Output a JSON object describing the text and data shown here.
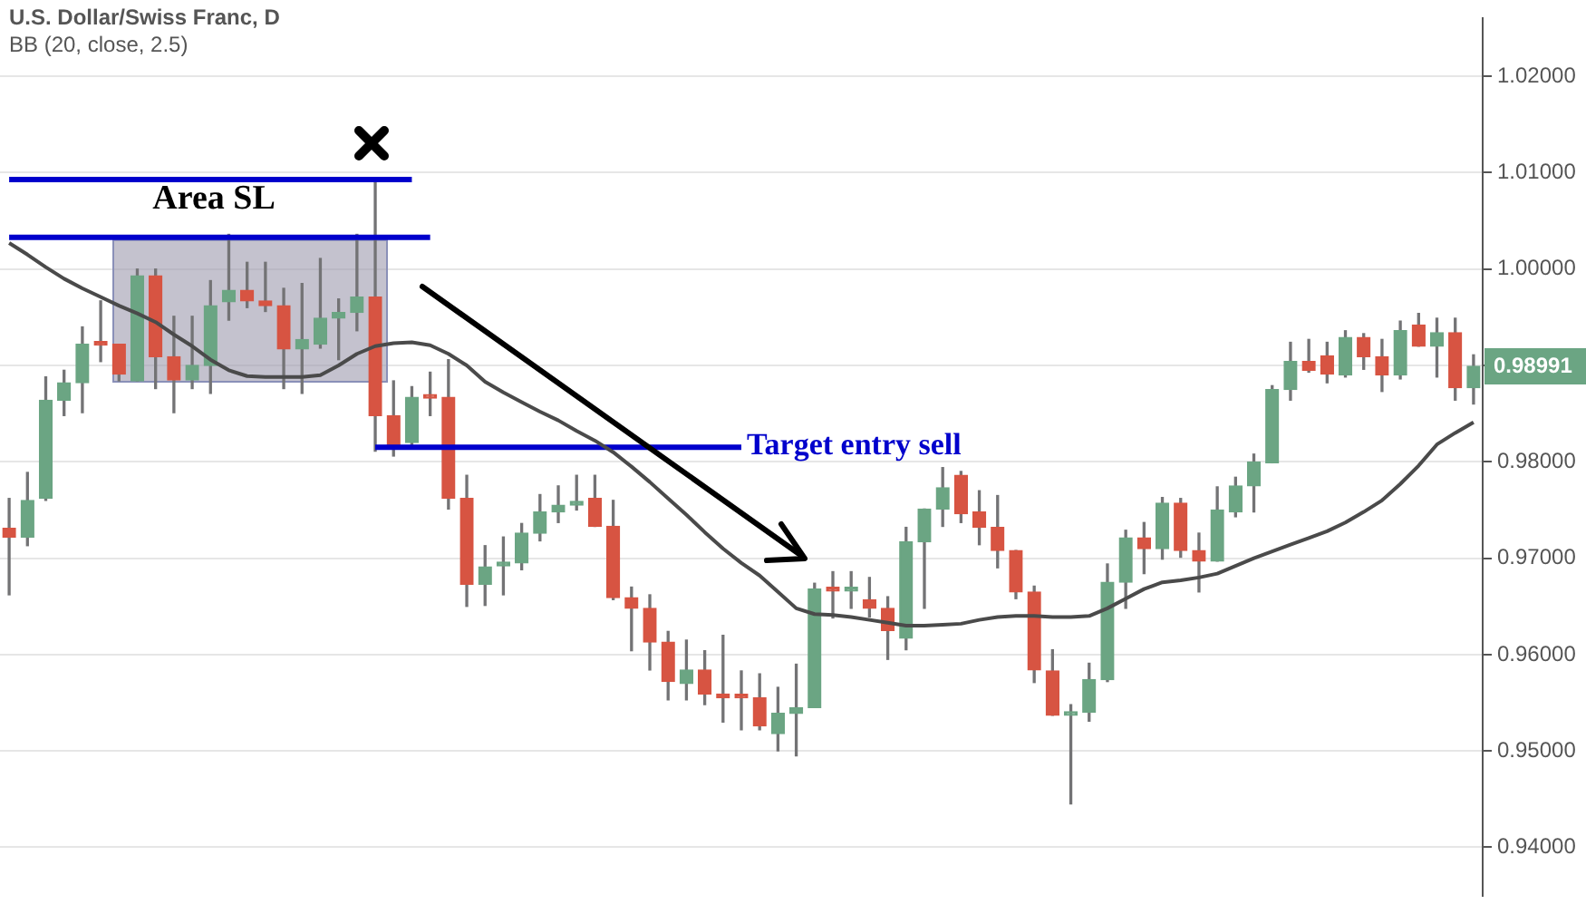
{
  "chart_data": {
    "type": "candlestick",
    "title": "U.S. Dollar/Swiss Franc, D",
    "subtitle": "BB (20, close, 2.5)",
    "categories": [
      null,
      null,
      null,
      null,
      null,
      null,
      null,
      null,
      null,
      null,
      null,
      null,
      null,
      null,
      null,
      null,
      null,
      null,
      null,
      null,
      null,
      null,
      null,
      null,
      null,
      null,
      null,
      null,
      null,
      null,
      null,
      null,
      null,
      null,
      null,
      null,
      null,
      null,
      null,
      null,
      null,
      null,
      null,
      null,
      null,
      null,
      null,
      null,
      null,
      null,
      null,
      null,
      null,
      null,
      null,
      null,
      null,
      null,
      null,
      null,
      null,
      null,
      null,
      null,
      null,
      null,
      null,
      null,
      null,
      null,
      null,
      null,
      null,
      null,
      null,
      null,
      null,
      null,
      null,
      null,
      null
    ],
    "series": [
      {
        "ohlc": [
          [
            0.9731,
            0.9762,
            0.9662,
            0.9722
          ],
          [
            0.9722,
            0.9789,
            0.9713,
            0.976
          ],
          [
            0.9762,
            0.9888,
            0.976,
            0.9864
          ],
          [
            0.9864,
            0.9895,
            0.9848,
            0.9882
          ],
          [
            0.9882,
            0.994,
            0.9851,
            0.9922
          ],
          [
            0.9923,
            0.9967,
            0.9904,
            0.9921
          ],
          [
            0.9922,
            0.9922,
            0.9884,
            0.9891
          ],
          [
            0.9884,
            1.0,
            0.9884,
            0.9993
          ],
          [
            0.9993,
            1.0,
            0.9876,
            0.9909
          ],
          [
            0.9909,
            0.9951,
            0.9851,
            0.9885
          ],
          [
            0.9885,
            0.9951,
            0.9876,
            0.99
          ],
          [
            0.99,
            0.9988,
            0.9871,
            0.9962
          ],
          [
            0.9966,
            1.0036,
            0.9947,
            0.9978
          ],
          [
            0.9978,
            1.0007,
            0.996,
            0.9967
          ],
          [
            0.9967,
            1.0007,
            0.9956,
            0.9962
          ],
          [
            0.9962,
            0.998,
            0.9876,
            0.9917
          ],
          [
            0.9917,
            0.9985,
            0.9871,
            0.9927
          ],
          [
            0.9922,
            1.0011,
            0.9918,
            0.9949
          ],
          [
            0.9949,
            0.9969,
            0.9906,
            0.9955
          ],
          [
            0.9955,
            1.0036,
            0.9936,
            0.9971
          ],
          [
            0.9971,
            1.0091,
            0.9811,
            0.9848
          ],
          [
            0.9848,
            0.9884,
            0.9806,
            0.9817
          ],
          [
            0.982,
            0.9878,
            0.9815,
            0.9867
          ],
          [
            0.9868,
            0.9893,
            0.9848,
            0.9866
          ],
          [
            0.9867,
            0.9906,
            0.9751,
            0.9762
          ],
          [
            0.9762,
            0.9786,
            0.965,
            0.9673
          ],
          [
            0.9673,
            0.9713,
            0.9651,
            0.9691
          ],
          [
            0.9692,
            0.9722,
            0.9662,
            0.9696
          ],
          [
            0.9695,
            0.9736,
            0.9688,
            0.9726
          ],
          [
            0.9726,
            0.9766,
            0.9718,
            0.9748
          ],
          [
            0.9748,
            0.9775,
            0.9737,
            0.9755
          ],
          [
            0.9755,
            0.9786,
            0.975,
            0.9759
          ],
          [
            0.9762,
            0.9786,
            0.9733,
            0.9733
          ],
          [
            0.9733,
            0.976,
            0.9657,
            0.9659
          ],
          [
            0.9659,
            0.967,
            0.9604,
            0.9648
          ],
          [
            0.9648,
            0.9662,
            0.9584,
            0.9613
          ],
          [
            0.9613,
            0.9624,
            0.9553,
            0.9572
          ],
          [
            0.957,
            0.9615,
            0.9553,
            0.9584
          ],
          [
            0.9584,
            0.9604,
            0.9548,
            0.9559
          ],
          [
            0.9559,
            0.962,
            0.953,
            0.9555
          ],
          [
            0.9556,
            0.9583,
            0.9522,
            0.9555
          ],
          [
            0.9555,
            0.958,
            0.9522,
            0.9526
          ],
          [
            0.9518,
            0.9566,
            0.95,
            0.9539
          ],
          [
            0.9539,
            0.959,
            0.9495,
            0.9545
          ],
          [
            0.9545,
            0.9674,
            0.9545,
            0.9668
          ],
          [
            0.9667,
            0.9686,
            0.9638,
            0.9666
          ],
          [
            0.9666,
            0.9686,
            0.9648,
            0.9667
          ],
          [
            0.9657,
            0.968,
            0.9639,
            0.9648
          ],
          [
            0.9648,
            0.966,
            0.9595,
            0.9625
          ],
          [
            0.9617,
            0.9732,
            0.9605,
            0.9717
          ],
          [
            0.9717,
            0.9751,
            0.9648,
            0.9751
          ],
          [
            0.9751,
            0.9794,
            0.9733,
            0.9773
          ],
          [
            0.9786,
            0.979,
            0.9737,
            0.9746
          ],
          [
            0.9748,
            0.977,
            0.9714,
            0.9732
          ],
          [
            0.9732,
            0.9765,
            0.969,
            0.9708
          ],
          [
            0.9708,
            0.9708,
            0.9658,
            0.9665
          ],
          [
            0.9665,
            0.9671,
            0.9571,
            0.9584
          ],
          [
            0.9583,
            0.9605,
            0.9537,
            0.9537
          ],
          [
            0.9537,
            0.9548,
            0.9445,
            0.954
          ],
          [
            0.954,
            0.9591,
            0.9531,
            0.9574
          ],
          [
            0.9574,
            0.9694,
            0.9572,
            0.9675
          ],
          [
            0.9675,
            0.9729,
            0.9648,
            0.9721
          ],
          [
            0.9721,
            0.9737,
            0.9684,
            0.971
          ],
          [
            0.971,
            0.9763,
            0.9699,
            0.9757
          ],
          [
            0.9757,
            0.9762,
            0.9701,
            0.9708
          ],
          [
            0.9708,
            0.9726,
            0.9665,
            0.9697
          ],
          [
            0.9697,
            0.9774,
            0.9697,
            0.975
          ],
          [
            0.9748,
            0.9784,
            0.9743,
            0.9775
          ],
          [
            0.9775,
            0.9808,
            0.9748,
            0.98
          ],
          [
            0.9799,
            0.9879,
            0.9799,
            0.9875
          ],
          [
            0.9875,
            0.9924,
            0.9864,
            0.9904
          ],
          [
            0.9904,
            0.9927,
            0.9893,
            0.9895
          ],
          [
            0.991,
            0.9924,
            0.9882,
            0.9891
          ],
          [
            0.989,
            0.9936,
            0.9888,
            0.9929
          ],
          [
            0.9929,
            0.9933,
            0.9896,
            0.9909
          ],
          [
            0.9909,
            0.9927,
            0.9873,
            0.989
          ],
          [
            0.989,
            0.9946,
            0.9886,
            0.9936
          ],
          [
            0.9942,
            0.9954,
            0.992,
            0.992
          ],
          [
            0.992,
            0.9949,
            0.9888,
            0.9934
          ],
          [
            0.9934,
            0.9949,
            0.9864,
            0.9877
          ],
          [
            0.9877,
            0.9911,
            0.986,
            0.98991
          ]
        ],
        "colors": [
          "#d75442",
          "#6ba583",
          "#6ba583",
          "#6ba583",
          "#6ba583",
          "#d75442",
          "#d75442",
          "#6ba583",
          "#d75442",
          "#d75442",
          "#6ba583",
          "#6ba583",
          "#6ba583",
          "#d75442",
          "#d75442",
          "#d75442",
          "#6ba583",
          "#6ba583",
          "#6ba583",
          "#6ba583",
          "#d75442",
          "#d75442",
          "#6ba583",
          "#d75442",
          "#d75442",
          "#d75442",
          "#6ba583",
          "#6ba583",
          "#6ba583",
          "#6ba583",
          "#6ba583",
          "#6ba583",
          "#d75442",
          "#d75442",
          "#d75442",
          "#d75442",
          "#d75442",
          "#6ba583",
          "#d75442",
          "#d75442",
          "#d75442",
          "#d75442",
          "#6ba583",
          "#6ba583",
          "#6ba583",
          "#d75442",
          "#6ba583",
          "#d75442",
          "#d75442",
          "#6ba583",
          "#6ba583",
          "#6ba583",
          "#d75442",
          "#d75442",
          "#d75442",
          "#d75442",
          "#d75442",
          "#d75442",
          "#6ba583",
          "#6ba583",
          "#6ba583",
          "#6ba583",
          "#d75442",
          "#6ba583",
          "#d75442",
          "#d75442",
          "#6ba583",
          "#6ba583",
          "#6ba583",
          "#6ba583",
          "#6ba583",
          "#d75442",
          "#d75442",
          "#6ba583",
          "#d75442",
          "#d75442",
          "#6ba583",
          "#d75442",
          "#6ba583",
          "#d75442",
          "#6ba583"
        ]
      },
      {
        "type": "line",
        "color": "#4a4a4a",
        "values": [
          1.0027,
          1.0015,
          1.0002,
          0.999,
          0.998,
          0.9971,
          0.9962,
          0.9954,
          0.9945,
          0.9932,
          0.992,
          0.9906,
          0.9895,
          0.9889,
          0.9888,
          0.9888,
          0.9888,
          0.989,
          0.99,
          0.9912,
          0.992,
          0.9923,
          0.9924,
          0.9921,
          0.9912,
          0.99,
          0.9883,
          0.9872,
          0.9862,
          0.9852,
          0.9843,
          0.9832,
          0.9822,
          0.981,
          0.9795,
          0.9779,
          0.9762,
          0.9745,
          0.9727,
          0.971,
          0.9695,
          0.9682,
          0.9665,
          0.9648,
          0.9642,
          0.9641,
          0.9639,
          0.9636,
          0.9633,
          0.963,
          0.963,
          0.9631,
          0.9632,
          0.9636,
          0.9639,
          0.964,
          0.964,
          0.9639,
          0.9639,
          0.964,
          0.9648,
          0.9658,
          0.9668,
          0.9675,
          0.9677,
          0.968,
          0.9684,
          0.9692,
          0.97,
          0.9707,
          0.9714,
          0.9721,
          0.9728,
          0.9737,
          0.9748,
          0.976,
          0.9777,
          0.9796,
          0.9818,
          0.983,
          0.9841
        ]
      },
      {
        "type": "line",
        "color": "#0000cc",
        "values": [
          1.0093,
          1.0093,
          1.0093,
          1.0093,
          1.0093,
          1.0093,
          1.0093,
          1.0093,
          1.0093,
          1.0093,
          1.0093,
          1.0093,
          1.0093,
          1.0093,
          1.0093,
          1.0093,
          1.0093,
          1.0093,
          1.0093,
          1.0093,
          1.0093,
          1.0093,
          1.0093,
          null,
          null,
          null,
          null,
          null,
          null,
          null,
          null,
          null,
          null,
          null,
          null,
          null,
          null,
          null,
          null,
          null,
          null,
          null,
          null,
          null,
          null,
          null,
          null,
          null,
          null,
          null,
          null,
          null,
          null,
          null,
          null,
          null,
          null,
          null,
          null,
          null,
          null,
          null,
          null,
          null,
          null,
          null,
          null,
          null,
          null,
          null,
          null,
          null,
          null,
          null,
          null,
          null,
          null,
          null,
          null,
          null,
          null
        ]
      },
      {
        "type": "line",
        "color": "#0000cc",
        "values": [
          1.0033,
          1.0033,
          1.0033,
          1.0033,
          1.0033,
          1.0033,
          1.0033,
          1.0033,
          1.0033,
          1.0033,
          1.0033,
          1.0033,
          1.0033,
          1.0033,
          1.0033,
          1.0033,
          1.0033,
          1.0033,
          1.0033,
          1.0033,
          1.0033,
          1.0033,
          1.0033,
          1.0033,
          null,
          null,
          null,
          null,
          null,
          null,
          null,
          null,
          null,
          null,
          null,
          null,
          null,
          null,
          null,
          null,
          null,
          null,
          null,
          null,
          null,
          null,
          null,
          null,
          null,
          null,
          null,
          null,
          null,
          null,
          null,
          null,
          null,
          null,
          null,
          null,
          null,
          null,
          null,
          null,
          null,
          null,
          null,
          null,
          null,
          null,
          null,
          null,
          null,
          null,
          null,
          null,
          null,
          null,
          null,
          null,
          null
        ]
      },
      {
        "type": "line",
        "color": "#0000cc",
        "values": [
          null,
          null,
          null,
          null,
          null,
          null,
          null,
          null,
          null,
          null,
          null,
          null,
          null,
          null,
          null,
          null,
          null,
          null,
          null,
          null,
          0.9815,
          0.9815,
          0.9815,
          0.9815,
          0.9815,
          0.9815,
          0.9815,
          0.9815,
          0.9815,
          0.9815,
          0.9815,
          0.9815,
          0.9815,
          0.9815,
          0.9815,
          0.9815,
          0.9815,
          0.9815,
          0.9815,
          0.9815,
          0.9815,
          null,
          null,
          null,
          null,
          null,
          null,
          null,
          null,
          null,
          null,
          null,
          null,
          null,
          null,
          null,
          null,
          null,
          null,
          null,
          null,
          null,
          null,
          null,
          null,
          null,
          null,
          null,
          null,
          null,
          null,
          null,
          null,
          null,
          null,
          null,
          null,
          null,
          null,
          null,
          null
        ]
      }
    ],
    "bands": [
      {
        "axis": "y",
        "from": 0.9884,
        "to": 1.0031,
        "color": "#9c9aae"
      }
    ],
    "ylim": [
      0.935,
      1.026
    ],
    "yticks": [
      {
        "value": 0.94,
        "label": "0.94000"
      },
      {
        "value": 0.95,
        "label": "0.95000"
      },
      {
        "value": 0.96,
        "label": "0.96000"
      },
      {
        "value": 0.97,
        "label": "0.97000"
      },
      {
        "value": 0.98,
        "label": "0.98000"
      },
      {
        "value": 0.99,
        "label": null
      },
      {
        "value": 1.0,
        "label": "1.00000"
      },
      {
        "value": 1.01,
        "label": "1.01000"
      },
      {
        "value": 1.02,
        "label": "1.02000"
      }
    ],
    "annotations": [
      "Area SL",
      "Target entry sell",
      "0.98991"
    ],
    "grid": "y",
    "tick_labels": "y",
    "marker": "none"
  }
}
